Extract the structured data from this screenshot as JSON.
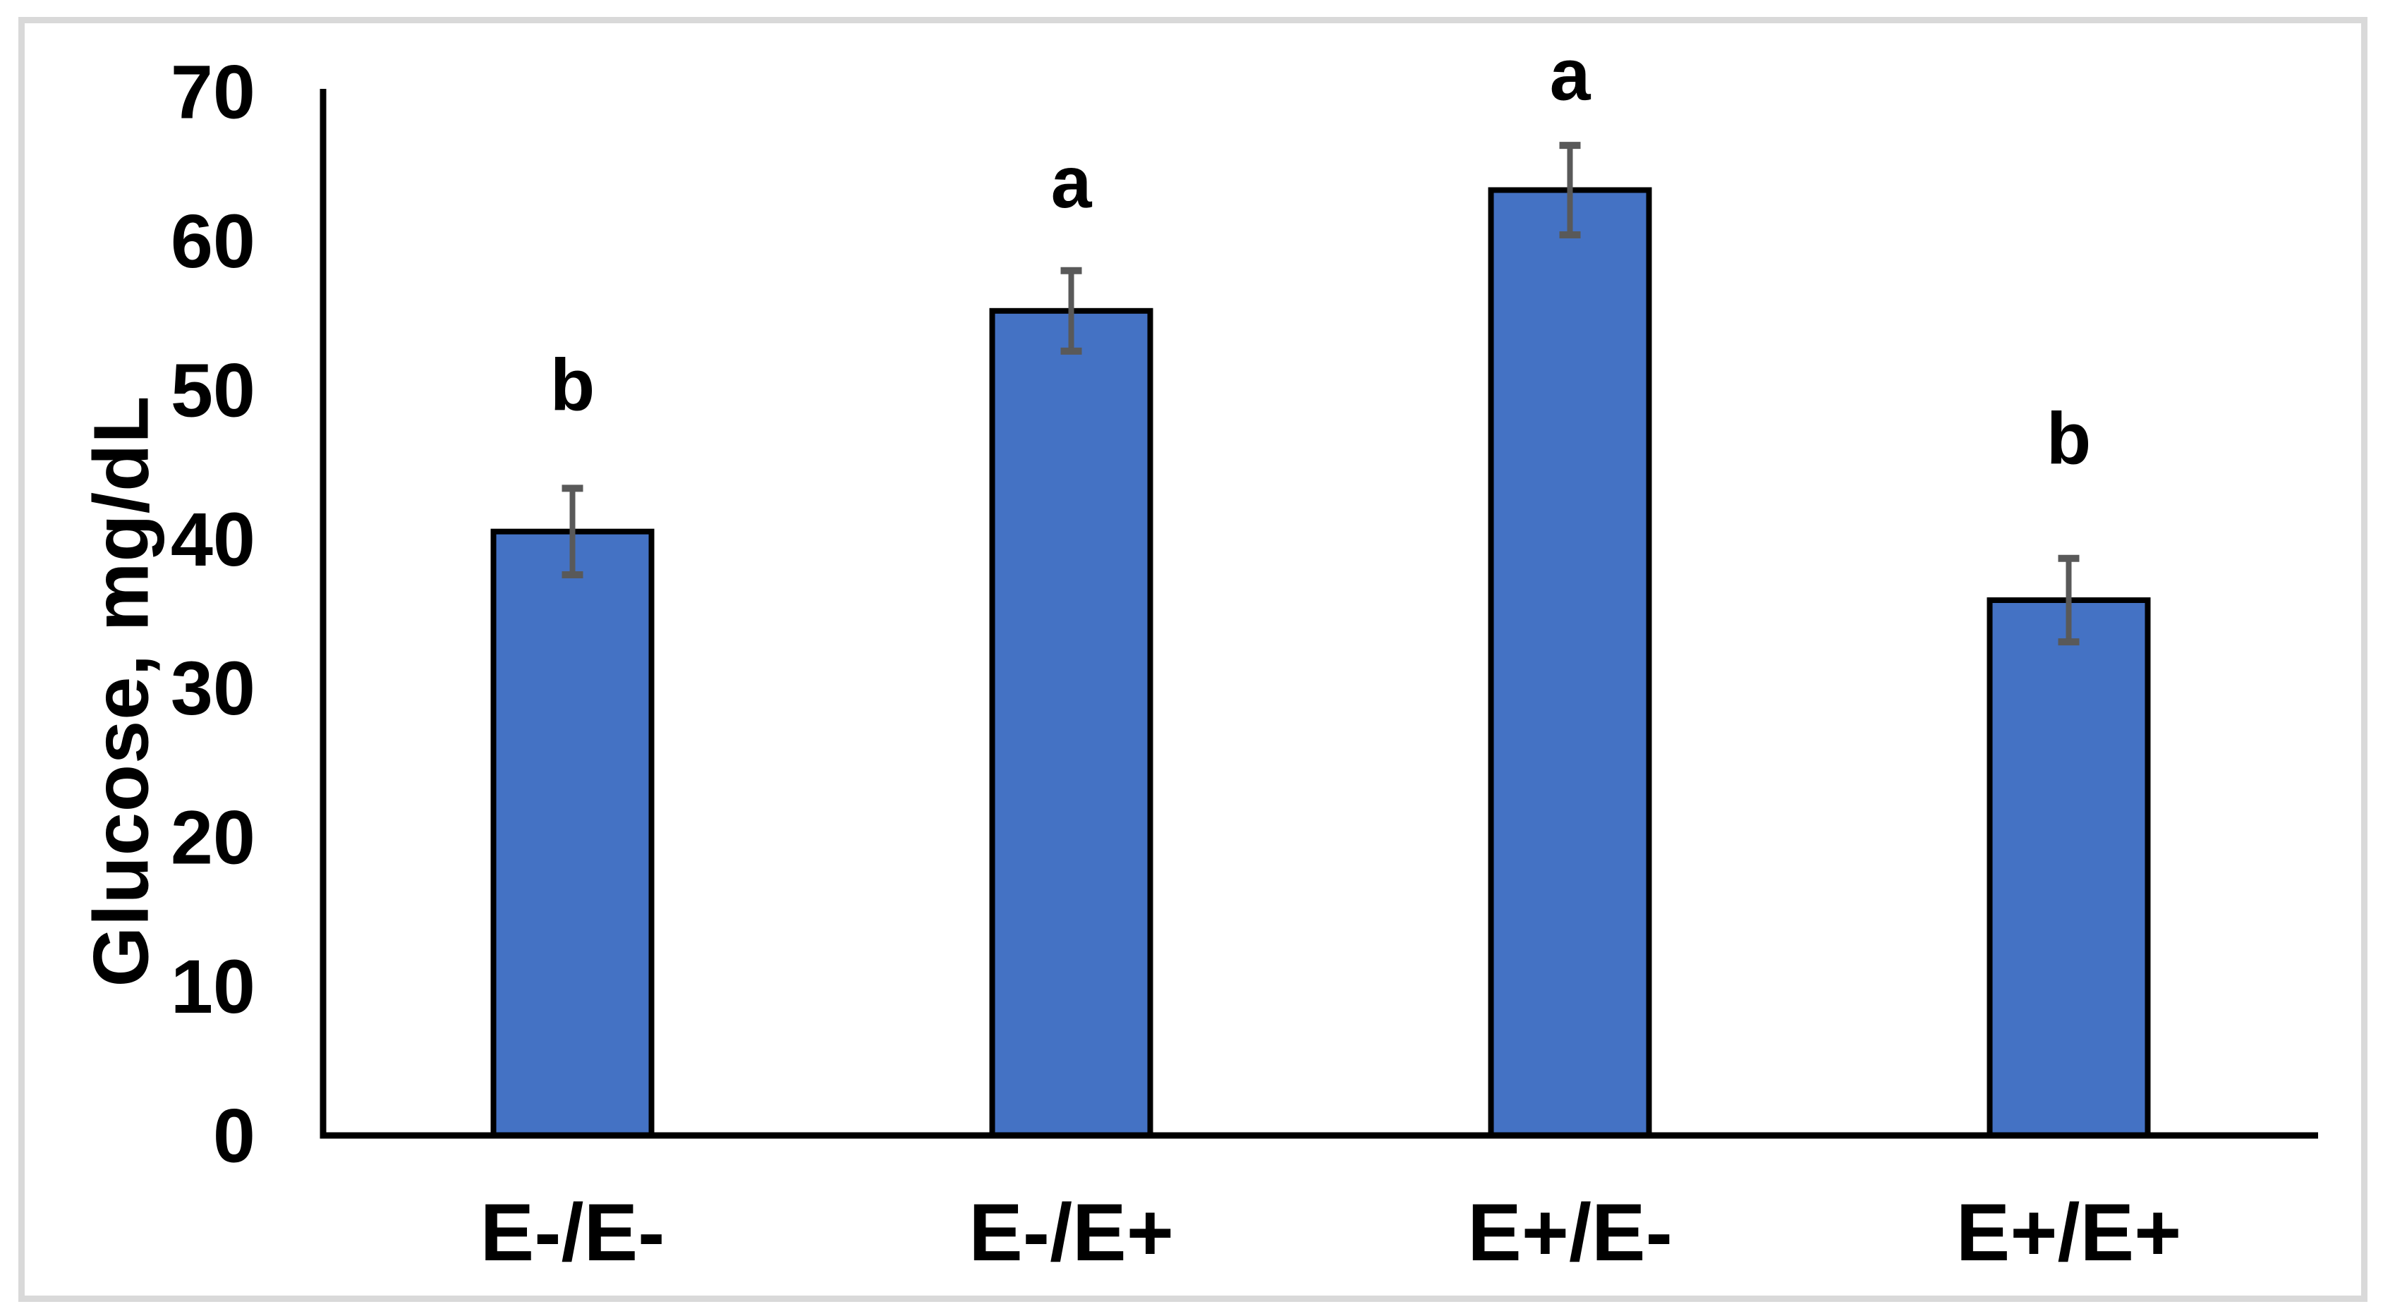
{
  "chart_data": {
    "type": "bar",
    "categories": [
      "E-/E-",
      "E-/E+",
      "E+/E-",
      "E+/E+"
    ],
    "values": [
      40.5,
      55.3,
      63.4,
      35.9
    ],
    "error_bars": [
      2.9,
      2.7,
      3.0,
      2.8
    ],
    "significance_letters": [
      "b",
      "a",
      "a",
      "b"
    ],
    "significance_letter_y": [
      50.3,
      63.9,
      71.1,
      46.7
    ],
    "ylabel": "Glucose, mg/dL",
    "xlabel": "",
    "ylim": [
      0,
      70
    ],
    "yticks": [
      0,
      10,
      20,
      30,
      40,
      50,
      60,
      70
    ],
    "grid": false,
    "legend": false,
    "bar_color": "#4472C4",
    "bar_outline_color": "#000000",
    "error_bar_color": "#595959",
    "axis_color": "#000000",
    "figure_border_color": "#d9d9d9"
  }
}
